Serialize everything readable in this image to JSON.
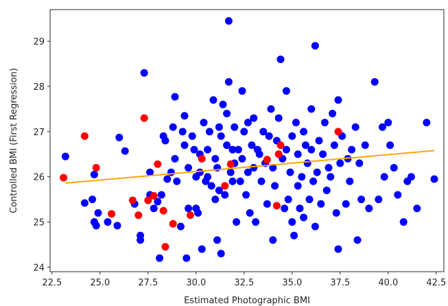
{
  "chart_data": {
    "type": "scatter",
    "title": "",
    "xlabel": "Estimated Photographic BMI",
    "ylabel": "Controlled BMI (First Regression)",
    "xlim": [
      22.4,
      42.9
    ],
    "ylim": [
      23.9,
      29.7
    ],
    "xticks": [
      "22.5",
      "25.0",
      "27.5",
      "30.0",
      "32.5",
      "35.0",
      "37.5",
      "40.0",
      "42.5"
    ],
    "yticks": [
      "24",
      "25",
      "26",
      "27",
      "28",
      "29"
    ],
    "grid": false,
    "colors": {
      "blue": "#0000ff",
      "red": "#ff0000",
      "fit": "#ffa500"
    },
    "series": [
      {
        "color": "blue",
        "points": [
          [
            23.2,
            26.45
          ],
          [
            24.2,
            25.42
          ],
          [
            24.6,
            25.5
          ],
          [
            24.7,
            26.05
          ],
          [
            24.7,
            25.0
          ],
          [
            24.8,
            24.92
          ],
          [
            24.9,
            25.2
          ],
          [
            25.4,
            25.0
          ],
          [
            25.9,
            24.92
          ],
          [
            26.0,
            26.87
          ],
          [
            26.3,
            26.57
          ],
          [
            26.8,
            25.4
          ],
          [
            27.1,
            24.7
          ],
          [
            27.1,
            24.6
          ],
          [
            27.3,
            28.3
          ],
          [
            27.6,
            25.6
          ],
          [
            27.6,
            26.1
          ],
          [
            27.8,
            25.3
          ],
          [
            28.0,
            25.45
          ],
          [
            28.1,
            24.2
          ],
          [
            28.2,
            25.6
          ],
          [
            28.3,
            26.9
          ],
          [
            28.4,
            26.8
          ],
          [
            28.5,
            25.95
          ],
          [
            28.7,
            26.1
          ],
          [
            28.8,
            27.1
          ],
          [
            28.9,
            27.77
          ],
          [
            28.9,
            26.4
          ],
          [
            29.0,
            25.9
          ],
          [
            29.2,
            24.9
          ],
          [
            29.3,
            27.0
          ],
          [
            29.4,
            26.7
          ],
          [
            29.4,
            27.35
          ],
          [
            29.5,
            24.2
          ],
          [
            29.6,
            26.2
          ],
          [
            29.6,
            25.3
          ],
          [
            29.8,
            26.9
          ],
          [
            29.9,
            26.6
          ],
          [
            30.0,
            25.3
          ],
          [
            30.0,
            26.0
          ],
          [
            30.1,
            25.2
          ],
          [
            30.2,
            26.1
          ],
          [
            30.2,
            26.5
          ],
          [
            30.3,
            24.4
          ],
          [
            30.4,
            27.2
          ],
          [
            30.5,
            25.9
          ],
          [
            30.6,
            26.0
          ],
          [
            30.6,
            26.6
          ],
          [
            30.7,
            27.0
          ],
          [
            30.8,
            25.8
          ],
          [
            30.9,
            27.7
          ],
          [
            31.0,
            25.5
          ],
          [
            31.0,
            26.4
          ],
          [
            31.1,
            24.6
          ],
          [
            31.1,
            26.2
          ],
          [
            31.2,
            27.1
          ],
          [
            31.2,
            25.7
          ],
          [
            31.3,
            24.3
          ],
          [
            31.3,
            26.9
          ],
          [
            31.4,
            27.6
          ],
          [
            31.5,
            25.6
          ],
          [
            31.6,
            26.7
          ],
          [
            31.6,
            27.4
          ],
          [
            31.7,
            28.1
          ],
          [
            31.8,
            26.1
          ],
          [
            31.9,
            25.9
          ],
          [
            31.9,
            26.6
          ],
          [
            31.7,
            29.45
          ],
          [
            32.0,
            27.1
          ],
          [
            32.0,
            26.3
          ],
          [
            32.1,
            25.0
          ],
          [
            32.2,
            26.6
          ],
          [
            32.3,
            25.9
          ],
          [
            32.4,
            27.9
          ],
          [
            32.4,
            26.4
          ],
          [
            32.5,
            27.0
          ],
          [
            32.6,
            25.6
          ],
          [
            32.7,
            26.1
          ],
          [
            32.7,
            27.2
          ],
          [
            32.8,
            25.2
          ],
          [
            32.9,
            26.7
          ],
          [
            33.0,
            27.3
          ],
          [
            33.0,
            26.2
          ],
          [
            33.1,
            25.0
          ],
          [
            33.2,
            26.6
          ],
          [
            33.3,
            26.5
          ],
          [
            33.4,
            25.9
          ],
          [
            33.5,
            27.0
          ],
          [
            33.6,
            26.3
          ],
          [
            33.7,
            25.4
          ],
          [
            33.8,
            26.9
          ],
          [
            33.9,
            27.5
          ],
          [
            34.0,
            24.6
          ],
          [
            34.0,
            26.2
          ],
          [
            34.1,
            25.8
          ],
          [
            34.2,
            26.8
          ],
          [
            34.3,
            27.3
          ],
          [
            34.4,
            28.6
          ],
          [
            34.5,
            26.4
          ],
          [
            34.6,
            25.3
          ],
          [
            34.7,
            26.6
          ],
          [
            34.7,
            27.9
          ],
          [
            34.8,
            25.5
          ],
          [
            34.9,
            26.1
          ],
          [
            35.0,
            26.9
          ],
          [
            35.0,
            25.0
          ],
          [
            35.1,
            24.7
          ],
          [
            35.2,
            27.2
          ],
          [
            35.3,
            26.5
          ],
          [
            35.3,
            25.8
          ],
          [
            35.4,
            25.3
          ],
          [
            35.5,
            26.0
          ],
          [
            35.6,
            27.0
          ],
          [
            35.6,
            25.1
          ],
          [
            35.7,
            26.7
          ],
          [
            35.8,
            26.3
          ],
          [
            35.9,
            25.5
          ],
          [
            36.0,
            27.5
          ],
          [
            36.0,
            26.6
          ],
          [
            36.1,
            25.9
          ],
          [
            36.2,
            24.9
          ],
          [
            36.2,
            28.9
          ],
          [
            36.3,
            26.1
          ],
          [
            36.4,
            26.8
          ],
          [
            36.5,
            25.4
          ],
          [
            36.6,
            26.5
          ],
          [
            36.7,
            27.2
          ],
          [
            36.8,
            25.7
          ],
          [
            36.9,
            26.2
          ],
          [
            37.0,
            26.0
          ],
          [
            37.1,
            27.4
          ],
          [
            37.2,
            26.7
          ],
          [
            37.3,
            25.2
          ],
          [
            37.4,
            27.7
          ],
          [
            37.4,
            24.4
          ],
          [
            37.5,
            26.3
          ],
          [
            37.6,
            26.9
          ],
          [
            37.8,
            25.4
          ],
          [
            37.9,
            26.4
          ],
          [
            38.0,
            25.9
          ],
          [
            38.1,
            26.6
          ],
          [
            38.3,
            27.1
          ],
          [
            38.4,
            24.6
          ],
          [
            38.5,
            26.3
          ],
          [
            38.6,
            25.5
          ],
          [
            38.8,
            26.7
          ],
          [
            39.0,
            25.3
          ],
          [
            39.3,
            28.1
          ],
          [
            39.5,
            25.5
          ],
          [
            39.7,
            27.1
          ],
          [
            39.8,
            26.0
          ],
          [
            40.0,
            27.2
          ],
          [
            40.1,
            26.7
          ],
          [
            40.3,
            26.2
          ],
          [
            40.5,
            25.6
          ],
          [
            40.8,
            25.0
          ],
          [
            41.0,
            25.9
          ],
          [
            41.2,
            26.0
          ],
          [
            41.5,
            25.3
          ],
          [
            42.0,
            27.2
          ],
          [
            42.4,
            25.95
          ]
        ]
      },
      {
        "color": "red",
        "points": [
          [
            23.1,
            25.98
          ],
          [
            24.2,
            26.9
          ],
          [
            24.8,
            26.2
          ],
          [
            25.6,
            25.18
          ],
          [
            26.7,
            25.48
          ],
          [
            27.0,
            25.15
          ],
          [
            27.3,
            27.3
          ],
          [
            27.5,
            25.48
          ],
          [
            27.8,
            25.58
          ],
          [
            28.0,
            26.28
          ],
          [
            28.3,
            25.25
          ],
          [
            28.4,
            24.45
          ],
          [
            28.8,
            24.96
          ],
          [
            29.7,
            25.15
          ],
          [
            30.3,
            26.4
          ],
          [
            31.5,
            25.8
          ],
          [
            31.8,
            26.28
          ],
          [
            33.7,
            26.38
          ],
          [
            34.2,
            25.36
          ],
          [
            34.3,
            26.5
          ],
          [
            34.4,
            26.7
          ],
          [
            37.4,
            27.0
          ]
        ]
      }
    ],
    "fit_line": {
      "color": "fit",
      "x": [
        23.2,
        42.4
      ],
      "y": [
        25.86,
        26.58
      ]
    }
  }
}
